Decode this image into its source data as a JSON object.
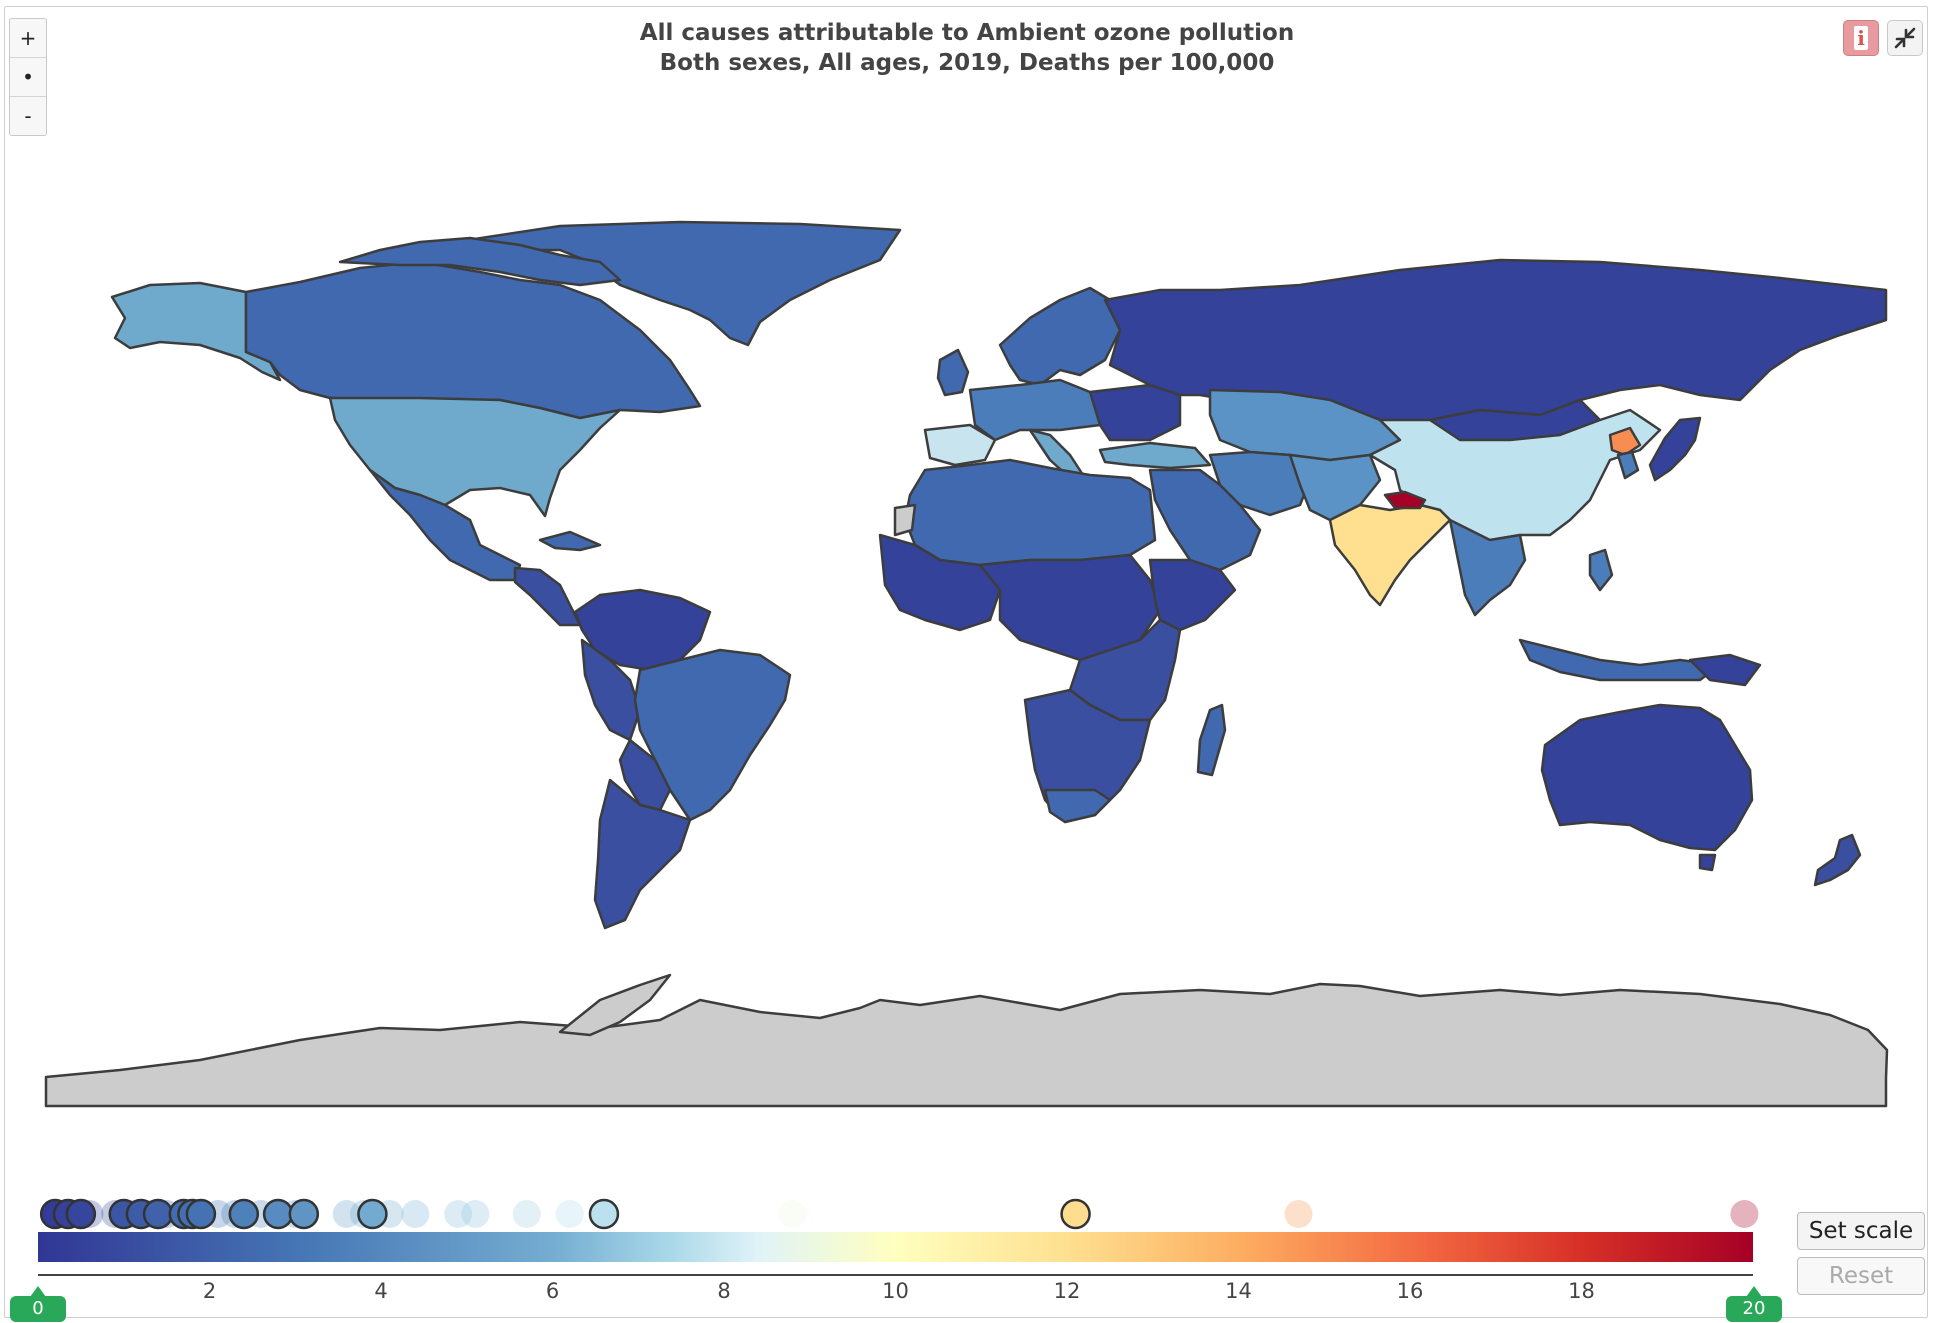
{
  "title": {
    "line1": "All causes attributable to Ambient ozone pollution",
    "line2": "Both sexes, All ages, 2019, Deaths per 100,000"
  },
  "zoom": {
    "in_label": "+",
    "reset_label": "•",
    "out_label": "-"
  },
  "icons": {
    "info": "info-icon",
    "collapse": "collapse-icon"
  },
  "legend": {
    "min": 0,
    "max": 20,
    "ticks": [
      "2",
      "4",
      "6",
      "8",
      "10",
      "12",
      "14",
      "16",
      "18"
    ],
    "low_handle": "0",
    "high_handle": "20",
    "colors": [
      "#313695",
      "#4575b4",
      "#74add1",
      "#abd9e9",
      "#e0f3f8",
      "#ffffbf",
      "#fee090",
      "#fdae61",
      "#f46d43",
      "#d73027",
      "#a50026"
    ]
  },
  "buttons": {
    "set_scale": "Set scale",
    "reset": "Reset"
  },
  "highlighted_values": [
    0.2,
    0.35,
    0.5,
    1.0,
    1.2,
    1.4,
    1.7,
    1.8,
    1.9,
    2.4,
    2.8,
    3.1,
    3.9,
    6.6,
    12.1
  ],
  "faded_values": [
    0.3,
    0.6,
    0.9,
    1.1,
    1.3,
    1.5,
    2.1,
    2.3,
    2.6,
    3.0,
    3.6,
    3.8,
    4.1,
    4.4,
    4.9,
    5.1,
    5.7,
    6.2,
    8.8,
    14.7,
    19.9
  ]
}
